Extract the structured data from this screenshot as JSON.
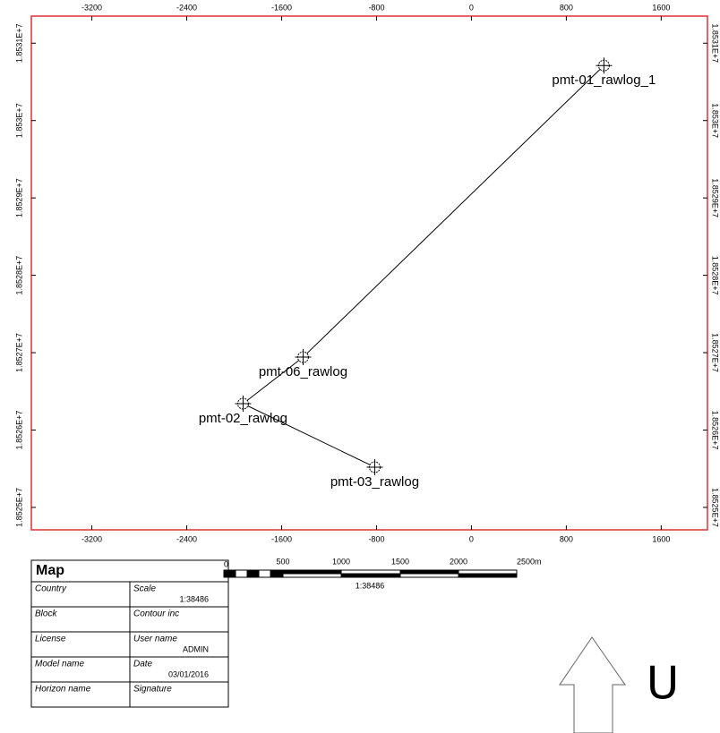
{
  "chart_data": {
    "type": "scatter",
    "x": [
      1117,
      -1419,
      -1925,
      -815
    ],
    "values": [
      18530711,
      18526942,
      18526341,
      18525520
    ],
    "labels": [
      "pmt-01_rawlog_1",
      "pmt-06_rawlog",
      "pmt-02_rawlog",
      "pmt-03_rawlog"
    ],
    "connect": true,
    "color": "#000000",
    "frame_color": "#e03030",
    "xlim": [
      -3710,
      1990
    ],
    "ylim": [
      18524710,
      18531350
    ],
    "xticks": [
      -3200,
      -2400,
      -1600,
      -800,
      0,
      800,
      1600
    ],
    "yticks": [
      {
        "value": 18525000,
        "label": "1.8525E+7"
      },
      {
        "value": 18526000,
        "label": "1.8526E+7"
      },
      {
        "value": 18527000,
        "label": "1.8527E+7"
      },
      {
        "value": 18528000,
        "label": "1.8528E+7"
      },
      {
        "value": 18529000,
        "label": "1.8529E+7"
      },
      {
        "value": 18530000,
        "label": "1.853E+7"
      },
      {
        "value": 18531000,
        "label": "1.8531E+7"
      }
    ]
  },
  "title_block": {
    "title": "Map",
    "rows": [
      {
        "left": "Country",
        "right": "Scale",
        "value": "1:38486"
      },
      {
        "left": "Block",
        "right": "Contour inc"
      },
      {
        "left": "License",
        "right": "User name",
        "value": "ADMIN"
      },
      {
        "left": "Model name",
        "right": "Date",
        "value": "03/01/2016"
      },
      {
        "left": "Horizon name",
        "right": "Signature"
      }
    ]
  },
  "scale_bar": {
    "labels": [
      "0",
      "500",
      "1000",
      "1500",
      "2000",
      "2500m"
    ],
    "ratio": "1:38486"
  },
  "overlay_text": "U"
}
